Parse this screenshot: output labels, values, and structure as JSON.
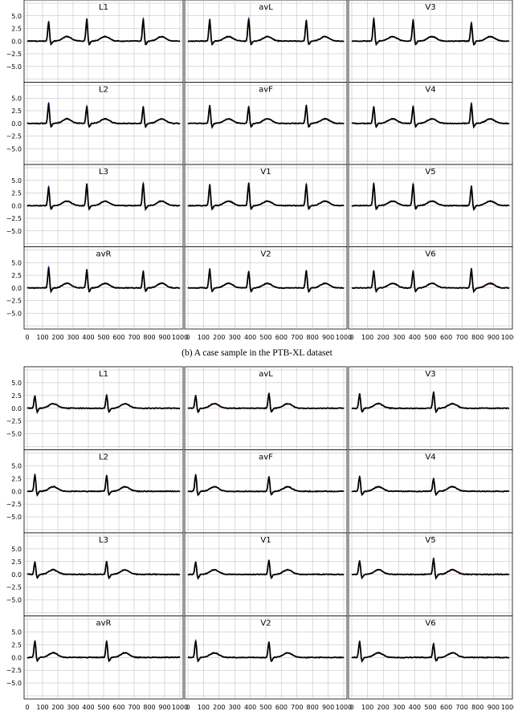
{
  "captions": {
    "top": "(b) A case sample in the PTB-XL dataset"
  },
  "colors": {
    "ground_truth": "#000000",
    "pred_red": "#e31a1c",
    "pred_blue": "#1f3fe0",
    "grid": "#b8b8b8"
  },
  "chart_data": [
    {
      "type": "line",
      "panel_group": "top",
      "x_ticks": [
        "0",
        "100",
        "200",
        "300",
        "400",
        "500",
        "600",
        "700",
        "800",
        "900",
        "1000"
      ],
      "y_ticks": [
        "5.0",
        "2.5",
        "0.0",
        "−2.5",
        "−5.0"
      ],
      "ylim": [
        -7.5,
        7.5
      ],
      "xlim": [
        0,
        1000
      ],
      "grid": true,
      "leads": [
        [
          "L1",
          "avL",
          "V3"
        ],
        [
          "L2",
          "avF",
          "V4"
        ],
        [
          "L3",
          "V1",
          "V5"
        ],
        [
          "avR",
          "V2",
          "V6"
        ]
      ],
      "series": [
        {
          "color": "black",
          "values_note": ""
        },
        {
          "color": "red"
        },
        {
          "color": "blue"
        }
      ]
    },
    {
      "type": "line",
      "panel_group": "bottom",
      "x_ticks": [
        "0",
        "100",
        "200",
        "300",
        "400",
        "500",
        "600",
        "700",
        "800",
        "900",
        "1000"
      ],
      "y_ticks": [
        "5.0",
        "2.5",
        "0.0",
        "−2.5",
        "−5.0"
      ],
      "ylim": [
        -7.5,
        7.5
      ],
      "xlim": [
        0,
        1000
      ],
      "grid": true,
      "leads": [
        [
          "L1",
          "avL",
          "V3"
        ],
        [
          "L2",
          "avF",
          "V4"
        ],
        [
          "L3",
          "V1",
          "V5"
        ],
        [
          "avR",
          "V2",
          "V6"
        ]
      ],
      "series": [
        {
          "color": "black"
        },
        {
          "color": "red"
        },
        {
          "color": "blue"
        }
      ]
    }
  ]
}
